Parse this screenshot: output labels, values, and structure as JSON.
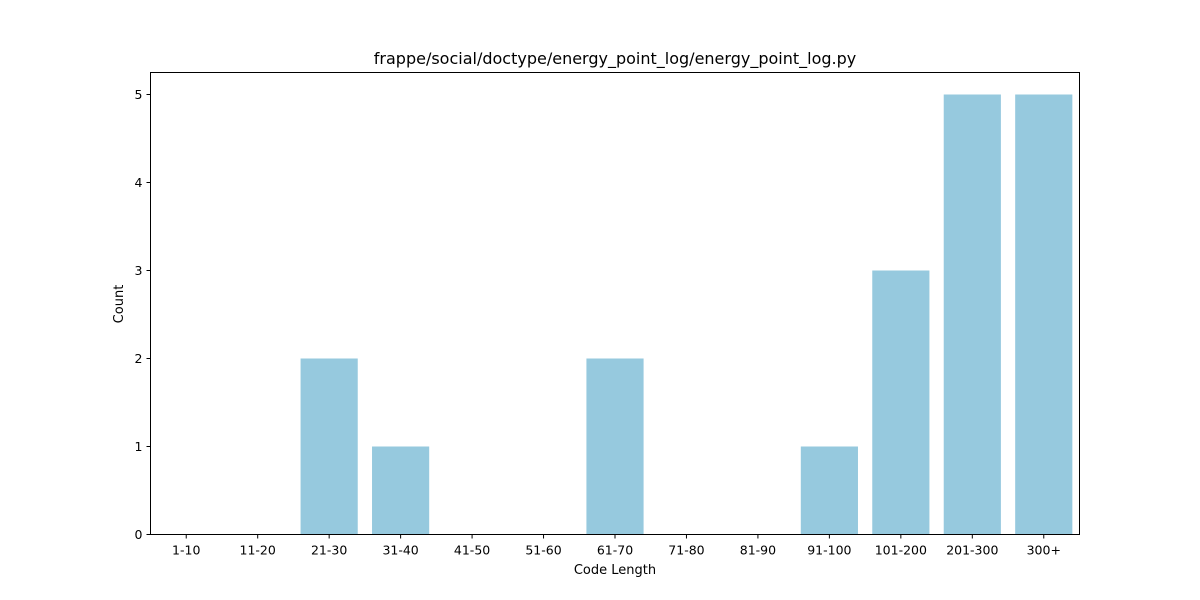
{
  "chart_data": {
    "type": "bar",
    "title": "frappe/social/doctype/energy_point_log/energy_point_log.py",
    "xlabel": "Code Length",
    "ylabel": "Count",
    "categories": [
      "1-10",
      "11-20",
      "21-30",
      "31-40",
      "41-50",
      "51-60",
      "61-70",
      "71-80",
      "81-90",
      "91-100",
      "101-200",
      "201-300",
      "300+"
    ],
    "values": [
      0,
      0,
      2,
      1,
      0,
      0,
      2,
      0,
      0,
      1,
      3,
      5,
      5
    ],
    "yticks": [
      0,
      1,
      2,
      3,
      4,
      5
    ],
    "ylim": [
      0,
      5.25
    ],
    "grid": false,
    "colors": {
      "bar": "#96c9de",
      "axis": "#000000"
    }
  }
}
